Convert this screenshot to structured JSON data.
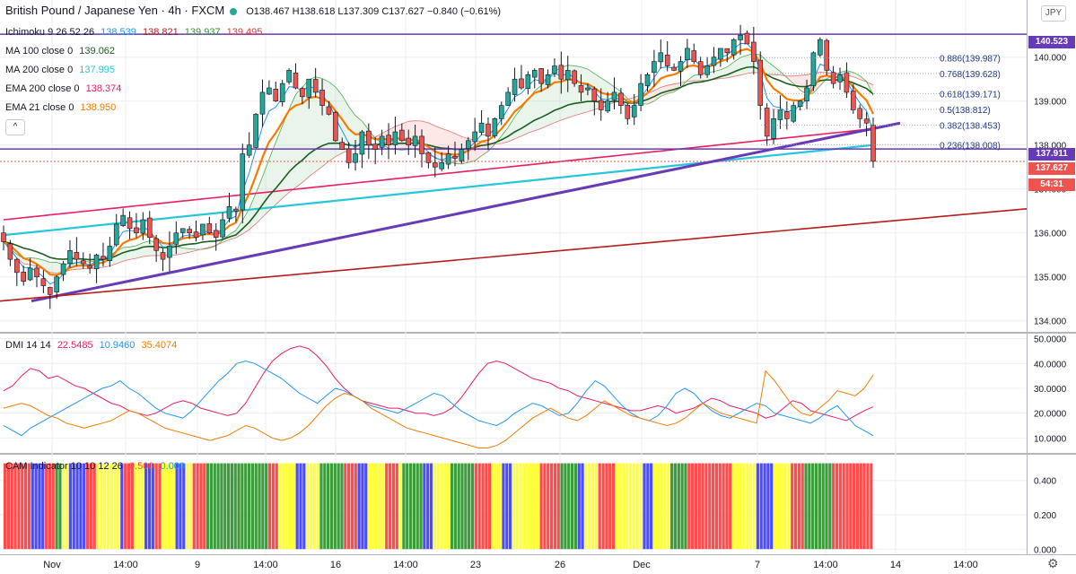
{
  "header": {
    "symbol": "British Pound / Japanese Yen · 4h · FXCM",
    "ohlc": "O138.467 H138.618 L137.309 C137.627 −0.840 (−0.61%)",
    "currency_button": "JPY"
  },
  "indicators": {
    "ichimoku": {
      "label": "Ichimoku 9 26 52 26",
      "v1": "138.539",
      "v2": "138.821",
      "v3": "139.937",
      "v4": "139.495"
    },
    "ma100": {
      "label": "MA 100 close 0",
      "value": "139.062"
    },
    "ma200": {
      "label": "MA 200 close 0",
      "value": "137.995"
    },
    "ema200": {
      "label": "EMA 200 close 0",
      "value": "138.374"
    },
    "ema21": {
      "label": "EMA 21 close 0",
      "value": "138.950"
    },
    "dmi": {
      "label": "DMI 14 14",
      "v1": "22.5485",
      "v2": "10.9460",
      "v3": "35.4074"
    },
    "cam": {
      "label": "CAM Indicator 10 10 12 26",
      "v1": "0.500",
      "v2": "0.000"
    }
  },
  "price_tags": {
    "resistance": "140.523",
    "support": "137.911",
    "last": "137.627",
    "countdown": "54:31"
  },
  "fibonacci": [
    {
      "label": "0.886(139.987)",
      "price": 139.987
    },
    {
      "label": "0.768(139.628)",
      "price": 139.628
    },
    {
      "label": "0.618(139.171)",
      "price": 139.171
    },
    {
      "label": "0.5(138.812)",
      "price": 138.812
    },
    {
      "label": "0.382(138.453)",
      "price": 138.453
    },
    {
      "label": "0.236(138.008)",
      "price": 138.008
    }
  ],
  "colors": {
    "up": "#26a69a",
    "down": "#ef5350",
    "trendline": "#673ab7",
    "lower_trend": "#b71c1c",
    "ma100": "#1b5e20",
    "ma200": "#26c6da",
    "ema200": "#e91e63",
    "ema21": "#f57c00",
    "dmi_plus": "#e91e63",
    "dmi_minus": "#2196f3",
    "adx": "#f57c00",
    "cam_red": "#ff4b4b",
    "cam_blue": "#4b4bff",
    "cam_yellow": "#ffff3c",
    "cam_green": "#3c9c3c"
  },
  "chart_data": [
    {
      "type": "candlestick",
      "title": "British Pound / Japanese Yen · 4h · FXCM",
      "x_tick_labels": [
        "Nov",
        "14:00",
        "9",
        "14:00",
        "16",
        "14:00",
        "23",
        "26",
        "Dec",
        "7",
        "14:00",
        "14",
        "14:00"
      ],
      "y_tick_labels": [
        "134.000",
        "135.000",
        "136.000",
        "137.000",
        "138.000",
        "139.000",
        "140.000"
      ],
      "ylim": [
        133.75,
        141.3
      ],
      "close": [
        135.8,
        135.4,
        135.1,
        134.9,
        135.2,
        135.0,
        134.8,
        134.6,
        135.0,
        135.3,
        135.6,
        135.4,
        135.3,
        135.2,
        135.5,
        135.4,
        135.7,
        136.2,
        136.4,
        136.1,
        136.0,
        136.3,
        135.9,
        135.6,
        135.4,
        135.7,
        136.0,
        136.1,
        136.0,
        135.9,
        136.2,
        136.0,
        135.9,
        136.3,
        136.6,
        136.5,
        137.8,
        138.0,
        138.7,
        139.2,
        139.3,
        139.0,
        139.4,
        139.7,
        139.3,
        139.1,
        139.5,
        139.2,
        138.9,
        138.7,
        138.1,
        137.9,
        137.6,
        137.8,
        138.3,
        138.0,
        137.9,
        138.2,
        138.0,
        138.3,
        138.1,
        138.0,
        138.2,
        137.8,
        137.6,
        137.5,
        137.6,
        137.8,
        137.7,
        137.9,
        138.1,
        138.3,
        138.5,
        138.2,
        138.6,
        138.9,
        139.2,
        139.5,
        139.3,
        139.6,
        139.7,
        139.4,
        139.6,
        139.8,
        139.5,
        139.7,
        139.4,
        139.2,
        139.3,
        139.0,
        138.8,
        139.0,
        139.2,
        138.9,
        138.6,
        138.9,
        139.4,
        139.6,
        139.9,
        140.1,
        139.8,
        139.7,
        139.9,
        140.2,
        139.9,
        139.6,
        139.8,
        140.0,
        140.2,
        140.1,
        140.4,
        140.5,
        140.3,
        139.9,
        138.9,
        138.2,
        138.6,
        138.8,
        138.6,
        138.9,
        139.0,
        139.3,
        140.1,
        140.4,
        139.7,
        139.4,
        139.6,
        139.2,
        138.8,
        138.6,
        138.5,
        137.63
      ],
      "resistance": 140.523,
      "support": 137.911,
      "last": 137.627
    },
    {
      "type": "line",
      "title": "DMI 14 14",
      "y_tick_labels": [
        "10.0000",
        "20.0000",
        "30.0000",
        "40.0000",
        "50.0000"
      ],
      "ylim": [
        4,
        52
      ],
      "series": [
        {
          "name": "22.5485",
          "color": "#e91e63",
          "values": [
            29,
            31,
            35,
            38,
            37,
            34,
            35,
            33,
            31,
            30,
            28,
            26,
            24,
            23,
            21,
            20,
            19,
            20,
            22,
            24,
            25,
            24,
            22,
            21,
            20,
            19,
            20,
            24,
            30,
            36,
            41,
            44,
            46,
            47,
            46,
            43,
            39,
            34,
            30,
            27,
            25,
            24,
            23,
            22,
            22,
            21,
            20,
            20,
            19,
            20,
            22,
            26,
            31,
            36,
            40,
            41,
            40,
            38,
            36,
            34,
            33,
            32,
            30,
            29,
            27,
            26,
            25,
            24,
            23,
            22,
            21,
            21,
            22,
            23,
            22,
            20,
            21,
            22,
            24,
            26,
            25,
            23,
            22,
            21,
            20,
            18,
            19,
            22,
            25,
            24,
            21,
            20,
            19,
            18,
            17,
            19,
            21,
            22.55
          ]
        },
        {
          "name": "10.9460",
          "color": "#2196f3",
          "values": [
            15,
            13,
            11,
            14,
            16,
            18,
            20,
            22,
            24,
            26,
            28,
            30,
            31,
            33,
            30,
            28,
            25,
            22,
            20,
            19,
            18,
            21,
            25,
            29,
            33,
            36,
            40,
            41,
            40,
            38,
            36,
            34,
            31,
            28,
            26,
            24,
            27,
            30,
            29,
            27,
            25,
            23,
            22,
            21,
            20,
            22,
            24,
            26,
            28,
            27,
            24,
            21,
            19,
            17,
            16,
            15,
            17,
            20,
            22,
            24,
            23,
            21,
            19,
            20,
            24,
            29,
            33,
            31,
            27,
            23,
            20,
            18,
            17,
            19,
            23,
            28,
            30,
            28,
            24,
            21,
            19,
            18,
            20,
            22,
            24,
            23,
            20,
            19,
            18,
            17,
            16,
            18,
            21,
            23,
            19,
            15,
            13,
            10.95
          ]
        },
        {
          "name": "35.4074",
          "color": "#f57c00",
          "values": [
            22,
            23,
            24,
            23,
            21,
            19,
            18,
            16,
            15,
            14,
            15,
            16,
            17,
            19,
            21,
            20,
            18,
            16,
            14,
            13,
            12,
            11,
            10,
            9,
            10,
            11,
            13,
            15,
            14,
            12,
            10,
            9,
            10,
            12,
            15,
            19,
            23,
            26,
            28,
            27,
            25,
            22,
            20,
            18,
            16,
            14,
            13,
            12,
            11,
            10,
            9,
            8,
            7,
            6,
            6,
            7,
            9,
            12,
            15,
            18,
            20,
            22,
            20,
            18,
            17,
            19,
            22,
            25,
            23,
            21,
            19,
            18,
            17,
            16,
            15,
            16,
            18,
            21,
            24,
            22,
            20,
            19,
            18,
            17,
            16,
            37,
            33,
            28,
            23,
            20,
            19,
            22,
            25,
            29,
            28,
            27,
            30,
            35.41
          ]
        }
      ]
    },
    {
      "type": "bar",
      "title": "CAM Indicator 10 10 12 26",
      "y_tick_labels": [
        "0.000",
        "0.200",
        "0.400"
      ],
      "ylim": [
        -0.03,
        0.55
      ],
      "value": 0.5,
      "color_sequence": "RRRRRRRRBBBBRRRGGYYBBBBBRRRYYYYYYYBRRRYYYBBBRRYYYYBBBYYRRRRGGGGGGGGGGGGGGGGGGRRRYYYYYBBBYYYYGGGGGGGRRRRBBBYYYYYRRRRYGGGGGGBBBYYYYYGGGGGGGRRRRRYYYBBBYYYYYYYYRRRRRRGGGGGBBYYYYRRRRRYYYYYYYYBBBYYYYYGGGGGRRRRRRRRRRRRRYYYYYYYBBBBBYYYYYRRRRGGGGGGGGRRRRRRRRRRRR"
    }
  ]
}
